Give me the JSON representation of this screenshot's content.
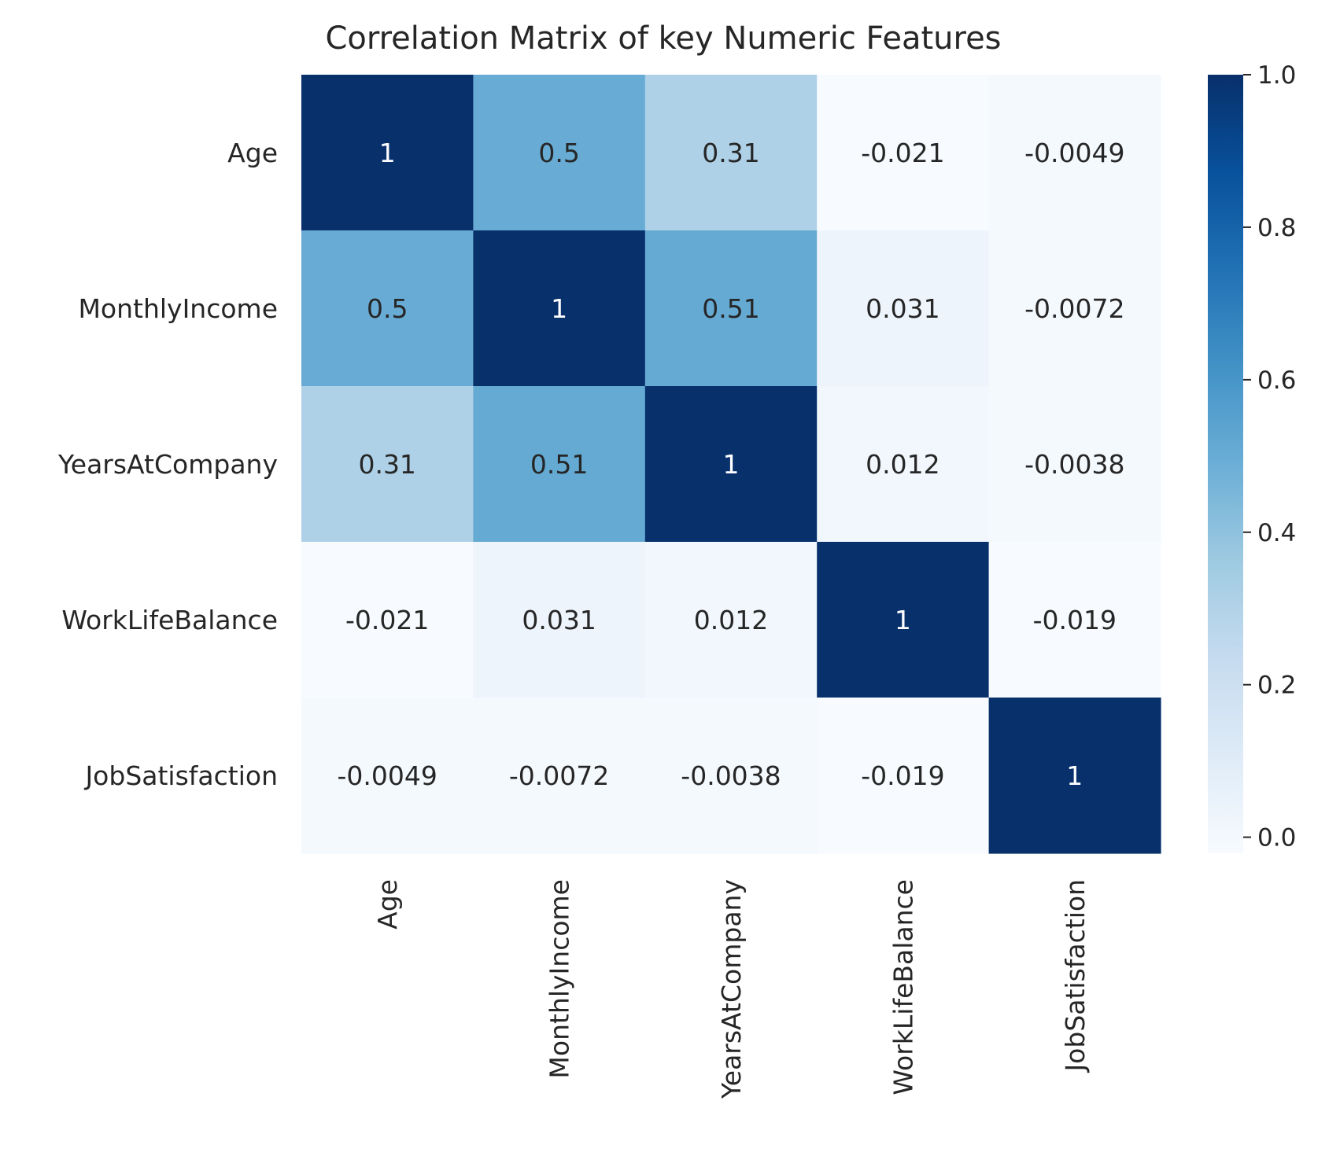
{
  "chart_data": {
    "type": "heatmap",
    "title": "Correlation Matrix of key Numeric Features",
    "row_labels": [
      "Age",
      "MonthlyIncome",
      "YearsAtCompany",
      "WorkLifeBalance",
      "JobSatisfaction"
    ],
    "col_labels": [
      "Age",
      "MonthlyIncome",
      "YearsAtCompany",
      "WorkLifeBalance",
      "JobSatisfaction"
    ],
    "values": [
      [
        1,
        0.5,
        0.31,
        -0.021,
        -0.0049
      ],
      [
        0.5,
        1,
        0.51,
        0.031,
        -0.0072
      ],
      [
        0.31,
        0.51,
        1,
        0.012,
        -0.0038
      ],
      [
        -0.021,
        0.031,
        0.012,
        1,
        -0.019
      ],
      [
        -0.0049,
        -0.0072,
        -0.0038,
        -0.019,
        1
      ]
    ],
    "value_labels": [
      [
        "1",
        "0.5",
        "0.31",
        "-0.021",
        "-0.0049"
      ],
      [
        "0.5",
        "1",
        "0.51",
        "0.031",
        "-0.0072"
      ],
      [
        "0.31",
        "0.51",
        "1",
        "0.012",
        "-0.0038"
      ],
      [
        "-0.021",
        "0.031",
        "0.012",
        "1",
        "-0.019"
      ],
      [
        "-0.0049",
        "-0.0072",
        "-0.0038",
        "-0.019",
        "1"
      ]
    ],
    "colormap": "Blues",
    "colorbar": {
      "range": [
        -0.021,
        1.0
      ],
      "ticks": [
        0.0,
        0.2,
        0.4,
        0.6,
        0.8,
        1.0
      ],
      "tick_labels": [
        "0.0",
        "0.2",
        "0.4",
        "0.6",
        "0.8",
        "1.0"
      ],
      "placement": "right"
    },
    "grid": false
  }
}
